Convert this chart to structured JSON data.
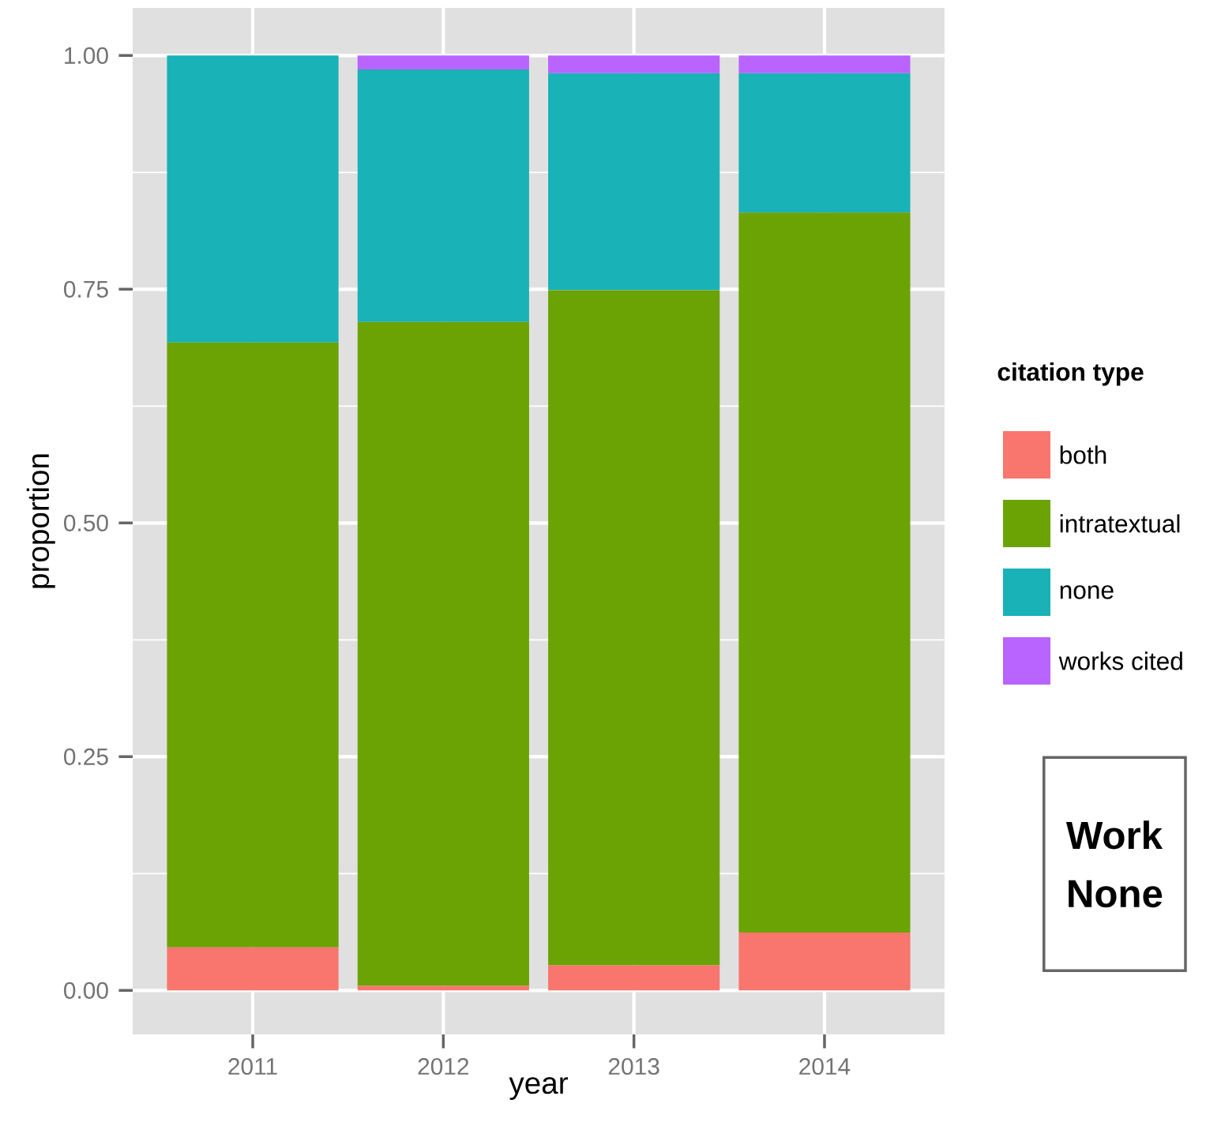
{
  "chart_data": {
    "type": "bar",
    "stacked": true,
    "xlabel": "year",
    "ylabel": "proportion",
    "legend_title": "citation type",
    "categories": [
      "2011",
      "2012",
      "2013",
      "2014"
    ],
    "series": [
      {
        "name": "both",
        "color": "#f8766d",
        "values": [
          0.046,
          0.005,
          0.027,
          0.062
        ]
      },
      {
        "name": "intratextual",
        "color": "#6ba304",
        "values": [
          0.647,
          0.71,
          0.722,
          0.77
        ]
      },
      {
        "name": "none",
        "color": "#19b2b6",
        "values": [
          0.307,
          0.27,
          0.232,
          0.149
        ]
      },
      {
        "name": "works cited",
        "color": "#b964ff",
        "values": [
          0,
          0.015,
          0.019,
          0.019
        ]
      }
    ],
    "ylim": [
      -0.047,
      1.051
    ],
    "yticks": [
      {
        "value": 0,
        "label": "0.00"
      },
      {
        "value": 0.25,
        "label": "0.25"
      },
      {
        "value": 0.5,
        "label": "0.50"
      },
      {
        "value": 0.75,
        "label": "0.75"
      },
      {
        "value": 1,
        "label": "1.00"
      }
    ],
    "grid": true,
    "legend": "right",
    "annotations": [
      "Work",
      "None"
    ]
  }
}
